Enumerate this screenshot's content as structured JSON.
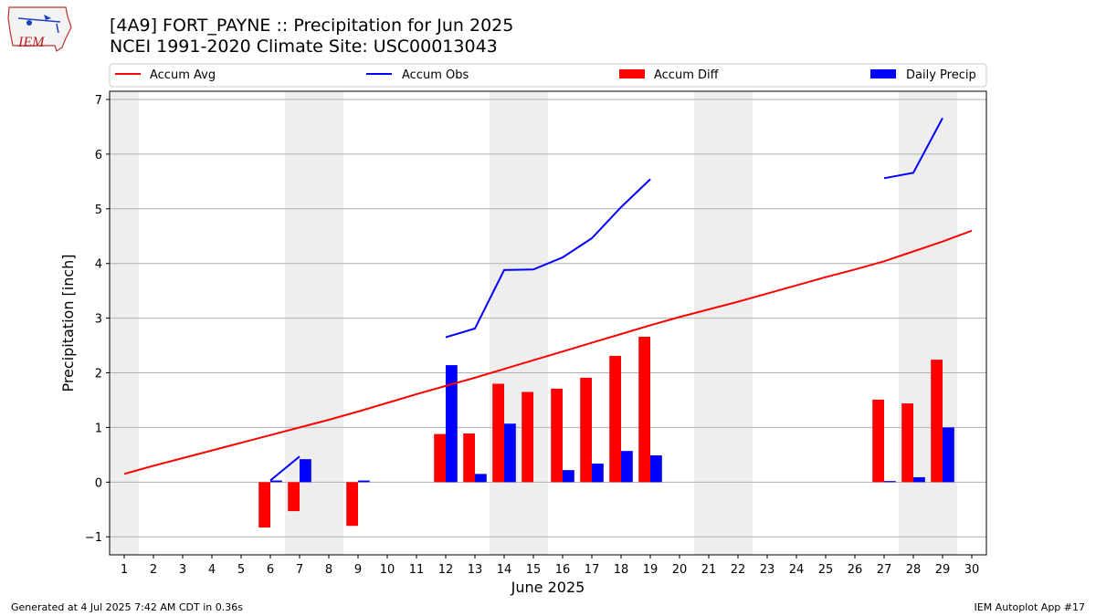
{
  "header": {
    "title_line1": "[4A9] FORT_PAYNE :: Precipitation for Jun 2025",
    "title_line2": "NCEI 1991-2020 Climate Site: USC00013043",
    "logo_text": "IEM"
  },
  "footer": {
    "left": "Generated at 4 Jul 2025 7:42 AM CDT in 0.36s",
    "right": "IEM Autoplot App #17"
  },
  "chart_data": {
    "type": "bar",
    "xlabel": "June 2025",
    "ylabel": "Precipitation [inch]",
    "xlim": [
      0.5,
      30.5
    ],
    "ylim": [
      -1.33,
      7.15
    ],
    "yticks": [
      -1,
      0,
      1,
      2,
      3,
      4,
      5,
      6,
      7
    ],
    "days": [
      1,
      2,
      3,
      4,
      5,
      6,
      7,
      8,
      9,
      10,
      11,
      12,
      13,
      14,
      15,
      16,
      17,
      18,
      19,
      20,
      21,
      22,
      23,
      24,
      25,
      26,
      27,
      28,
      29,
      30
    ],
    "weekend_days": [
      1,
      7,
      8,
      14,
      15,
      21,
      22,
      28,
      29
    ],
    "grid": "horizontal",
    "legend_position": "top",
    "legend": [
      "Accum Avg",
      "Accum Obs",
      "Accum Diff",
      "Daily Precip"
    ],
    "colors": {
      "accum_avg": "#ff0000",
      "accum_obs": "#0000ff",
      "accum_diff": "#ff0000",
      "daily_precip": "#0000ff",
      "weekend": "#eeeeee"
    },
    "accum_avg": [
      0.15,
      0.3,
      0.44,
      0.58,
      0.72,
      0.86,
      1.0,
      1.14,
      1.29,
      1.45,
      1.61,
      1.76,
      1.91,
      2.07,
      2.23,
      2.39,
      2.55,
      2.71,
      2.87,
      3.02,
      3.16,
      3.3,
      3.45,
      3.6,
      3.75,
      3.89,
      4.04,
      4.22,
      4.4,
      4.6
    ],
    "accum_obs": [
      null,
      null,
      null,
      null,
      null,
      0.03,
      0.47,
      null,
      null,
      null,
      null,
      2.65,
      2.81,
      3.88,
      3.89,
      4.11,
      4.46,
      5.03,
      5.54,
      null,
      null,
      null,
      null,
      null,
      null,
      null,
      5.56,
      5.66,
      6.66,
      null
    ],
    "accum_diff": [
      null,
      null,
      null,
      null,
      null,
      -0.83,
      -0.53,
      null,
      -0.8,
      null,
      null,
      0.88,
      0.89,
      1.8,
      1.65,
      1.71,
      1.91,
      2.31,
      2.66,
      null,
      null,
      null,
      null,
      null,
      null,
      null,
      1.51,
      1.44,
      2.24,
      null
    ],
    "daily_precip": [
      null,
      null,
      null,
      null,
      null,
      0.03,
      0.42,
      null,
      0.03,
      null,
      null,
      2.14,
      0.15,
      1.07,
      null,
      0.22,
      0.34,
      0.57,
      0.49,
      null,
      null,
      null,
      null,
      null,
      null,
      null,
      0.02,
      0.09,
      1.0,
      null
    ]
  }
}
